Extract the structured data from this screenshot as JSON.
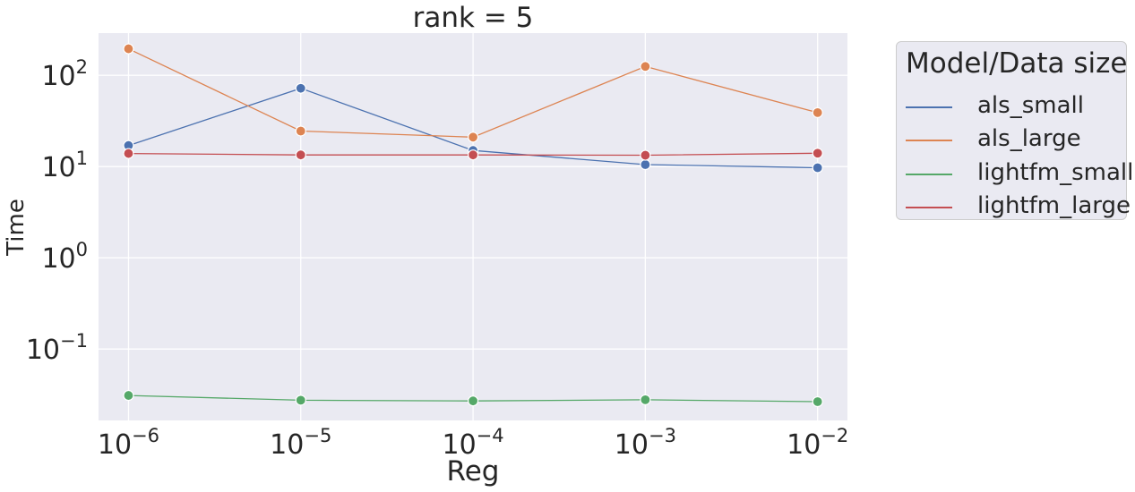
{
  "chart_data": {
    "type": "line",
    "title": "rank = 5",
    "xlabel": "Reg",
    "ylabel": "Time",
    "x_scale": "log",
    "y_scale": "log",
    "x": [
      1e-06,
      1e-05,
      0.0001,
      0.001,
      0.01
    ],
    "x_tick_labels": [
      {
        "base": "10",
        "exp": "−6"
      },
      {
        "base": "10",
        "exp": "−5"
      },
      {
        "base": "10",
        "exp": "−4"
      },
      {
        "base": "10",
        "exp": "−3"
      },
      {
        "base": "10",
        "exp": "−2"
      }
    ],
    "y_ticks": [
      0.1,
      1,
      10,
      100
    ],
    "y_tick_labels": [
      {
        "base": "10",
        "exp": "−1"
      },
      {
        "base": "10",
        "exp": "0"
      },
      {
        "base": "10",
        "exp": "1"
      },
      {
        "base": "10",
        "exp": "2"
      }
    ],
    "xlim": [
      6.7e-07,
      0.0149
    ],
    "ylim": [
      0.0165,
      290
    ],
    "grid": true,
    "legend": {
      "title": "Model/Data size",
      "placement": "outside-right"
    },
    "series": [
      {
        "name": "als_small",
        "color": "#4c72b0",
        "values": [
          17,
          72,
          15,
          10.5,
          9.7
        ]
      },
      {
        "name": "als_large",
        "color": "#dd8452",
        "values": [
          195,
          24.5,
          21,
          125,
          39
        ]
      },
      {
        "name": "lightfm_small",
        "color": "#55a868",
        "values": [
          0.031,
          0.0275,
          0.027,
          0.0278,
          0.0265
        ]
      },
      {
        "name": "lightfm_large",
        "color": "#c44e52",
        "values": [
          13.9,
          13.4,
          13.4,
          13.3,
          14.0
        ]
      }
    ]
  }
}
